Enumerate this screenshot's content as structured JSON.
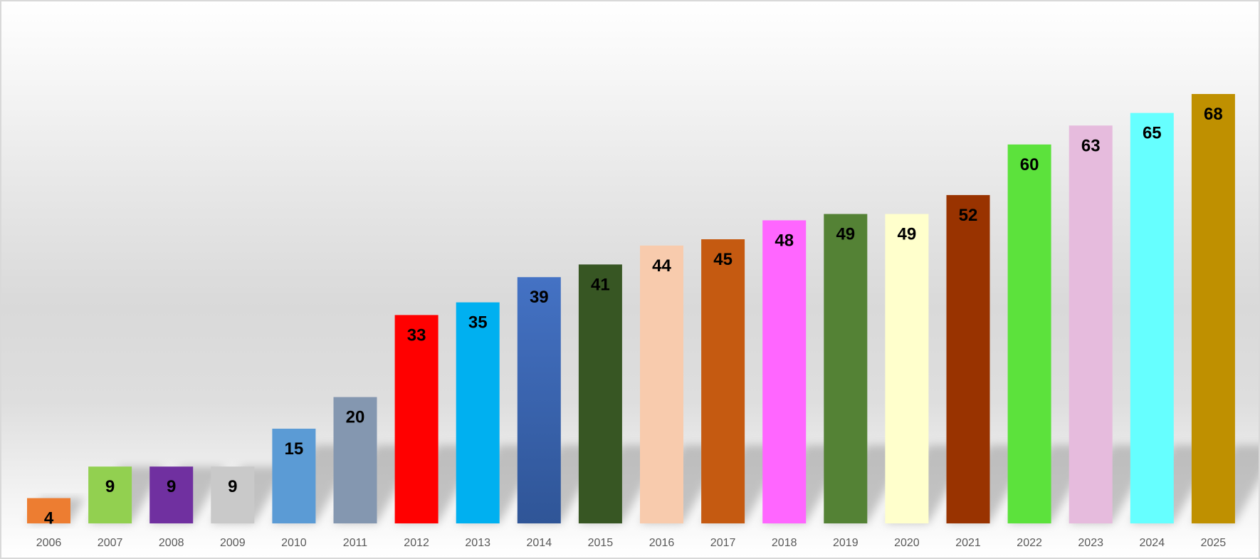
{
  "chart_data": {
    "type": "bar",
    "title": "",
    "xlabel": "",
    "ylabel": "",
    "ylim": [
      0,
      68
    ],
    "grid": false,
    "legend": "none",
    "categories": [
      "2006",
      "2007",
      "2008",
      "2009",
      "2010",
      "2011",
      "2012",
      "2013",
      "2014",
      "2015",
      "2016",
      "2017",
      "2018",
      "2019",
      "2020",
      "2021",
      "2022",
      "2023",
      "2024",
      "2025"
    ],
    "values": [
      4,
      9,
      9,
      9,
      15,
      20,
      33,
      35,
      39,
      41,
      44,
      45,
      48,
      49,
      49,
      52,
      60,
      63,
      65,
      68
    ],
    "colors": [
      "#ED7D31",
      "#92D050",
      "#7030A0",
      "#C9C9C9",
      "#5B9BD5",
      "#8497B0",
      "#FF0000",
      "#00B0F0",
      "#4472C4",
      "#375623",
      "#F8CBAD",
      "#C55A11",
      "#FF66FF",
      "#548235",
      "#FFFFCC",
      "#993300",
      "#5CE23C",
      "#E6BBDD",
      "#66FFFF",
      "#BF9000"
    ]
  }
}
